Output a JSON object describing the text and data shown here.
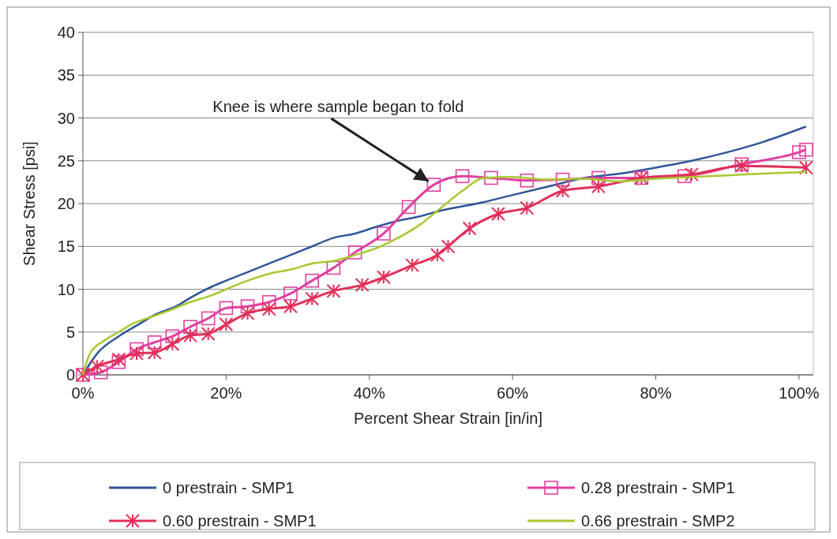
{
  "chart_data": {
    "type": "line",
    "xlabel": "Percent Shear Strain [in/in]",
    "ylabel": "Shear Stress [psi]",
    "xlim": [
      0,
      102
    ],
    "xticks": [
      {
        "value": 0,
        "label": "0%"
      },
      {
        "value": 20,
        "label": "20%"
      },
      {
        "value": 40,
        "label": "40%"
      },
      {
        "value": 60,
        "label": "60%"
      },
      {
        "value": 80,
        "label": "80%"
      },
      {
        "value": 100,
        "label": "100%"
      }
    ],
    "ylim": [
      0,
      40
    ],
    "yticks": [
      0,
      5,
      10,
      15,
      20,
      25,
      30,
      35,
      40
    ],
    "grid": "y",
    "legend": "bottom",
    "line_style": "solid",
    "annotations": [
      {
        "text": "Knee is where sample began to fold",
        "x": 49,
        "y": 22.2
      }
    ],
    "series": [
      {
        "name": "0 prestrain - SMP1",
        "color": "#2f5597",
        "marker": "none",
        "x": [
          0,
          2,
          5,
          8,
          10,
          13,
          15,
          18,
          20,
          23,
          26,
          29,
          32,
          35,
          38,
          41,
          44,
          47,
          50,
          55,
          60,
          65,
          70,
          75,
          80,
          85,
          90,
          95,
          101
        ],
        "values": [
          0,
          2.5,
          4.5,
          6,
          7,
          8,
          9,
          10.3,
          11,
          12,
          13,
          14,
          15,
          16,
          16.5,
          17.3,
          18,
          18.5,
          19.2,
          20,
          21,
          22,
          23,
          23.5,
          24.2,
          25,
          26,
          27.2,
          29
        ]
      },
      {
        "name": "0.28 prestrain - SMP1",
        "color": "#e040a0",
        "marker": "square",
        "x": [
          0,
          2.5,
          5,
          7.5,
          10,
          12.5,
          15,
          17.5,
          20,
          23,
          26,
          29,
          32,
          35,
          38,
          42,
          45.5,
          49,
          53,
          57,
          62,
          67,
          72,
          78,
          84,
          92,
          100,
          101
        ],
        "values": [
          0,
          0.3,
          1.5,
          3,
          3.8,
          4.5,
          5.6,
          6.6,
          7.8,
          8,
          8.5,
          9.5,
          11,
          12.5,
          14.3,
          16.5,
          19.6,
          22.2,
          23.2,
          23,
          22.7,
          22.8,
          23,
          23,
          23.2,
          24.6,
          26,
          26.3
        ]
      },
      {
        "name": "0.60 prestrain - SMP1",
        "color": "#e0305a",
        "marker": "cross",
        "x": [
          0,
          2,
          5,
          7.5,
          10,
          12.5,
          15,
          17.5,
          20,
          23,
          26,
          29,
          32,
          35,
          39,
          42,
          46,
          49.5,
          51,
          54,
          58,
          62,
          67,
          72,
          78,
          85,
          92,
          101
        ],
        "values": [
          0,
          1,
          1.8,
          2.5,
          2.6,
          3.6,
          4.6,
          4.8,
          5.9,
          7.2,
          7.7,
          8,
          8.9,
          9.8,
          10.5,
          11.4,
          12.8,
          14,
          15,
          17.1,
          18.8,
          19.5,
          21.5,
          22,
          23,
          23.4,
          24.4,
          24.2
        ]
      },
      {
        "name": "0.66 prestrain - SMP2",
        "color": "#a8c830",
        "marker": "none",
        "x": [
          0,
          1,
          3,
          5,
          7,
          9,
          12,
          15,
          18,
          20,
          23,
          26,
          29,
          32,
          35,
          38,
          41,
          44,
          47,
          50,
          53,
          56,
          60,
          65,
          70,
          75,
          80,
          85,
          90,
          95,
          101
        ],
        "values": [
          0,
          2.5,
          4,
          5,
          6,
          6.6,
          7.5,
          8.5,
          9.3,
          10,
          11,
          11.8,
          12.3,
          13,
          13.3,
          14,
          14.8,
          16,
          17.5,
          19.5,
          21.5,
          23,
          23.1,
          22.8,
          22.9,
          22.6,
          22.9,
          23.1,
          23.3,
          23.5,
          23.7
        ]
      }
    ]
  }
}
